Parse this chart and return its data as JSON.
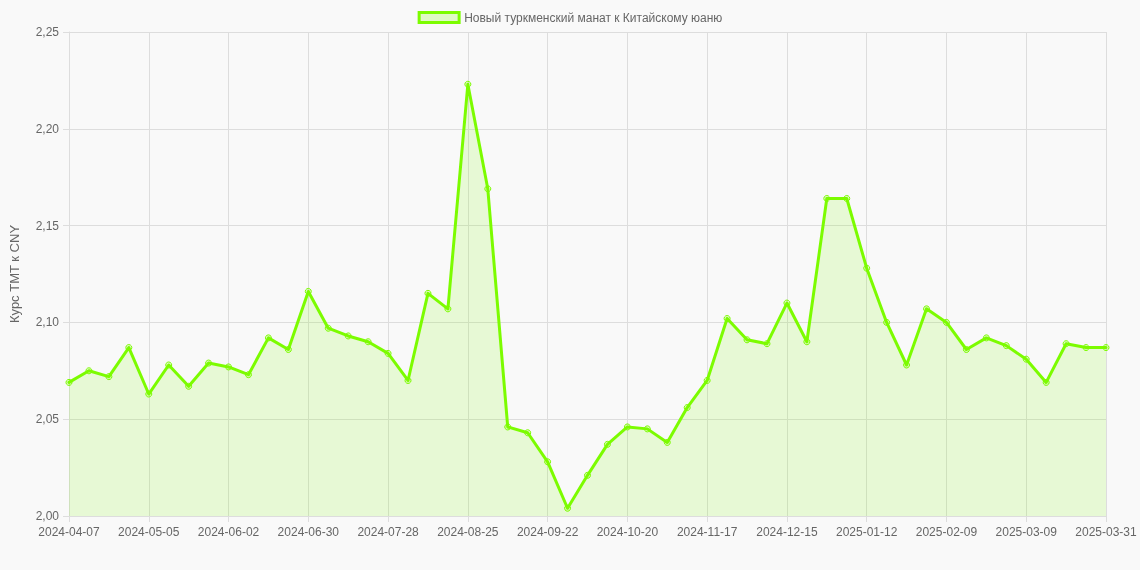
{
  "chart_data": {
    "type": "area",
    "ylabel": "Курс TMT к CNY",
    "categories": [
      "2024-04-07",
      null,
      null,
      null,
      "2024-05-05",
      null,
      null,
      null,
      "2024-06-02",
      null,
      null,
      null,
      "2024-06-30",
      null,
      null,
      null,
      "2024-07-28",
      null,
      null,
      null,
      "2024-08-25",
      null,
      null,
      null,
      "2024-09-22",
      null,
      null,
      null,
      "2024-10-20",
      null,
      null,
      null,
      "2024-11-17",
      null,
      null,
      null,
      "2024-12-15",
      null,
      null,
      null,
      "2025-01-12",
      null,
      null,
      null,
      "2025-02-09",
      null,
      null,
      null,
      "2025-03-09",
      null,
      null,
      null,
      "2025-03-31"
    ],
    "series": [
      {
        "name": "Новый туркменский манат к Китайскому юаню",
        "color": "#7cfc00",
        "values": [
          2.069,
          2.075,
          2.072,
          2.087,
          2.063,
          2.078,
          2.067,
          2.079,
          2.077,
          2.073,
          2.092,
          2.086,
          2.116,
          2.097,
          2.093,
          2.09,
          2.084,
          2.07,
          2.115,
          2.107,
          2.223,
          2.169,
          2.046,
          2.043,
          2.028,
          2.004,
          2.021,
          2.037,
          2.046,
          2.045,
          2.038,
          2.056,
          2.07,
          2.102,
          2.091,
          2.089,
          2.11,
          2.09,
          2.164,
          2.164,
          2.128,
          2.1,
          2.078,
          2.107,
          2.1,
          2.086,
          2.092,
          2.088,
          2.081,
          2.069,
          2.089,
          2.087,
          2.087
        ]
      }
    ],
    "ylim": [
      2.0,
      2.25
    ],
    "yticks": [
      {
        "value": 2.0,
        "label": "2,00"
      },
      {
        "value": 2.05,
        "label": "2,05"
      },
      {
        "value": 2.1,
        "label": "2,10"
      },
      {
        "value": 2.15,
        "label": "2,15"
      },
      {
        "value": 2.2,
        "label": "2,20"
      },
      {
        "value": 2.25,
        "label": "2,25"
      }
    ],
    "grid": true,
    "legend": "top",
    "marker": "circle",
    "line_style": "solid"
  }
}
